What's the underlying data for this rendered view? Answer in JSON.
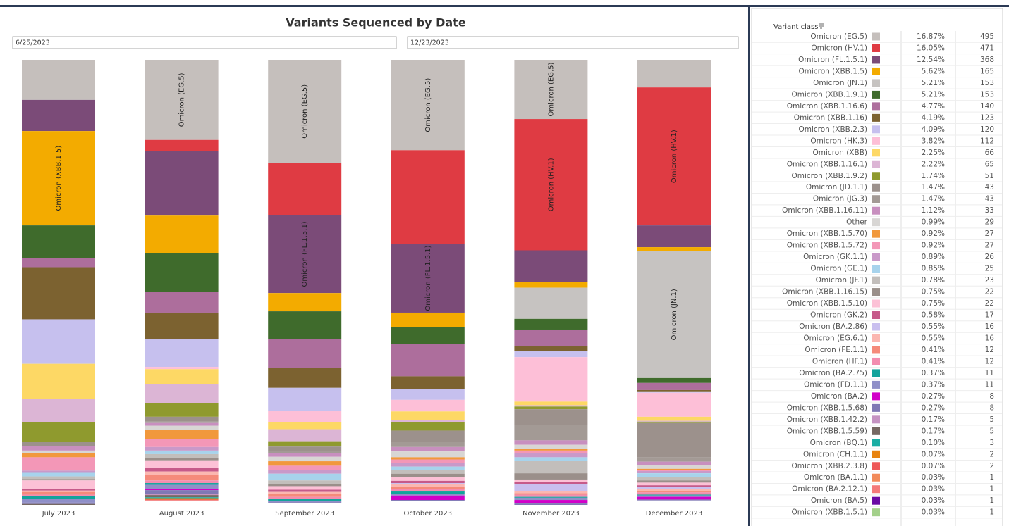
{
  "chart_data": {
    "type": "bar",
    "stacked": true,
    "title": "Variants Sequenced by Date",
    "date_from": "6/25/2023",
    "date_to": "12/23/2023",
    "legend_title": "Variant class",
    "categories": [
      "July 2023",
      "August 2023",
      "September 2023",
      "October 2023",
      "November 2023",
      "December 2023"
    ],
    "ylim": [
      0,
      100
    ],
    "series": [
      {
        "name": "Omicron (EG.5)",
        "color": "#c5bfbc",
        "share": "16.87%",
        "count": 495,
        "values": [
          9.0,
          18.0,
          23.2,
          20.3,
          13.3,
          6.2
        ]
      },
      {
        "name": "Omicron (HV.1)",
        "color": "#df3b43",
        "share": "16.05%",
        "count": 471,
        "values": [
          0,
          2.5,
          11.7,
          21.0,
          29.5,
          31.0
        ]
      },
      {
        "name": "Omicron (FL.1.5.1)",
        "color": "#7b4b78",
        "share": "12.54%",
        "count": 368,
        "values": [
          7.0,
          14.5,
          17.5,
          15.5,
          7.1,
          4.9
        ]
      },
      {
        "name": "Omicron (XBB.1.5)",
        "color": "#f3ab00",
        "share": "5.62%",
        "count": 165,
        "values": [
          21.2,
          8.5,
          4.1,
          3.3,
          1.3,
          0.9
        ]
      },
      {
        "name": "Omicron (JN.1)",
        "color": "#c6c3c1",
        "share": "5.21%",
        "count": 153,
        "values": [
          0,
          0,
          0,
          0,
          7.0,
          28.5
        ]
      },
      {
        "name": "Omicron (XBB.1.9.1)",
        "color": "#3f6b2c",
        "share": "5.21%",
        "count": 153,
        "values": [
          7.3,
          8.7,
          6.2,
          3.8,
          2.4,
          1.1
        ]
      },
      {
        "name": "Omicron (XBB.1.16.6)",
        "color": "#ad6e9c",
        "share": "4.77%",
        "count": 140,
        "values": [
          2.1,
          4.6,
          6.6,
          7.2,
          3.8,
          1.6
        ]
      },
      {
        "name": "Omicron (XBB.1.16)",
        "color": "#7c6230",
        "share": "4.19%",
        "count": 123,
        "values": [
          11.7,
          6.0,
          4.4,
          2.8,
          1.1,
          0.3
        ]
      },
      {
        "name": "Omicron (XBB.2.3)",
        "color": "#c6c0ee",
        "share": "4.09%",
        "count": 120,
        "values": [
          10.0,
          6.2,
          5.2,
          2.5,
          1.3,
          0.3
        ]
      },
      {
        "name": "Omicron (HK.3)",
        "color": "#fdbfd7",
        "share": "3.82%",
        "count": 112,
        "values": [
          0,
          0.5,
          2.5,
          2.6,
          10.0,
          5.4
        ]
      },
      {
        "name": "Omicron (XBB)",
        "color": "#fdd865",
        "share": "2.25%",
        "count": 66,
        "values": [
          7.9,
          3.3,
          1.6,
          1.9,
          0.8,
          0.9
        ]
      },
      {
        "name": "Omicron (XBB.1.16.1)",
        "color": "#dcb5d5",
        "share": "2.22%",
        "count": 65,
        "values": [
          5.2,
          4.4,
          2.7,
          0.5,
          0.3,
          0.2
        ]
      },
      {
        "name": "Omicron (XBB.1.9.2)",
        "color": "#8f9a2e",
        "share": "1.74%",
        "count": 51,
        "values": [
          4.4,
          3.0,
          1.2,
          1.9,
          0.6,
          0.3
        ]
      },
      {
        "name": "Omicron (JD.1.1)",
        "color": "#9c918c",
        "share": "1.47%",
        "count": 43,
        "values": [
          1.0,
          1.1,
          1.0,
          2.5,
          3.5,
          7.7
        ]
      },
      {
        "name": "Omicron (JG.3)",
        "color": "#a39a95",
        "share": "1.47%",
        "count": 43,
        "values": [
          0,
          0.3,
          0.5,
          1.2,
          3.5,
          1.0
        ]
      },
      {
        "name": "Omicron (XBB.1.16.11)",
        "color": "#c88fbf",
        "share": "1.12%",
        "count": 33,
        "values": [
          1.0,
          0.6,
          0.8,
          1.0,
          1.0,
          0.8
        ]
      },
      {
        "name": "Other",
        "color": "#d8d6d4",
        "share": "0.99%",
        "count": 29,
        "values": [
          0.5,
          1.0,
          1.0,
          1.3,
          1.0,
          0.8
        ]
      },
      {
        "name": "Omicron (XBB.1.5.70)",
        "color": "#f1983c",
        "share": "0.92%",
        "count": 27,
        "values": [
          1.0,
          2.0,
          1.0,
          0.5,
          0.3,
          0.2
        ]
      },
      {
        "name": "Omicron (XBB.1.5.72)",
        "color": "#f397b7",
        "share": "0.92%",
        "count": 27,
        "values": [
          3.0,
          1.8,
          1.0,
          0.8,
          0.5,
          0.3
        ]
      },
      {
        "name": "Omicron (GK.1.1)",
        "color": "#c999c9",
        "share": "0.89%",
        "count": 26,
        "values": [
          0.5,
          0.8,
          0.8,
          0.8,
          1.0,
          0.5
        ]
      },
      {
        "name": "Omicron (GE.1)",
        "color": "#a7d3ec",
        "share": "0.85%",
        "count": 25,
        "values": [
          0.8,
          0.8,
          1.5,
          0.8,
          0.8,
          0.8
        ]
      },
      {
        "name": "Omicron (JF.1)",
        "color": "#c2bebb",
        "share": "0.78%",
        "count": 23,
        "values": [
          0.6,
          0.8,
          0.8,
          0.8,
          2.8,
          0.8
        ]
      },
      {
        "name": "Omicron (XBB.1.16.15)",
        "color": "#9a8f8a",
        "share": "0.75%",
        "count": 22,
        "values": [
          0.3,
          0.6,
          0.5,
          0.8,
          1.4,
          0.5
        ]
      },
      {
        "name": "Omicron (XBB.1.5.10)",
        "color": "#fcc1d6",
        "share": "0.75%",
        "count": 22,
        "values": [
          2.0,
          1.7,
          0.8,
          0.8,
          0.5,
          0.6
        ]
      },
      {
        "name": "Omicron (GK.2)",
        "color": "#c65a8a",
        "share": "0.58%",
        "count": 17,
        "values": [
          0.3,
          0.8,
          0.5,
          0.5,
          0.6,
          0.3
        ]
      },
      {
        "name": "Omicron (BA.2.86)",
        "color": "#c9bfef",
        "share": "0.55%",
        "count": 16,
        "values": [
          0,
          0,
          0,
          0.3,
          1.5,
          0.6
        ]
      },
      {
        "name": "Omicron (EG.6.1)",
        "color": "#fbb7b1",
        "share": "0.55%",
        "count": 16,
        "values": [
          0.3,
          0.8,
          0.5,
          0.5,
          0.5,
          0.5
        ]
      },
      {
        "name": "Omicron (FE.1.1)",
        "color": "#f58a7a",
        "share": "0.41%",
        "count": 12,
        "values": [
          0.6,
          1.2,
          0.6,
          0.6,
          0.3,
          0.2
        ]
      },
      {
        "name": "Omicron (HF.1)",
        "color": "#f38db0",
        "share": "0.41%",
        "count": 12,
        "values": [
          0.3,
          0.6,
          0.5,
          0.5,
          0.5,
          0.5
        ]
      },
      {
        "name": "Omicron (BA.2.75)",
        "color": "#13a39b",
        "share": "0.37%",
        "count": 11,
        "values": [
          0.7,
          0.4,
          0.4,
          0.6,
          0.2,
          0.2
        ]
      },
      {
        "name": "Omicron (FD.1.1)",
        "color": "#8f8fc8",
        "share": "0.37%",
        "count": 11,
        "values": [
          0.8,
          1.0,
          0.3,
          0.3,
          0.5,
          0.3
        ]
      },
      {
        "name": "Omicron (BA.2)",
        "color": "#d100c8",
        "share": "0.27%",
        "count": 8,
        "values": [
          0,
          0.2,
          0,
          1.0,
          0.8,
          0.6
        ]
      },
      {
        "name": "Omicron (XBB.1.5.68)",
        "color": "#7f78b4",
        "share": "0.27%",
        "count": 8,
        "values": [
          0.3,
          0.8,
          0.2,
          0.3,
          0.3,
          0.2
        ]
      },
      {
        "name": "Omicron (XBB.1.42.2)",
        "color": "#c593c2",
        "share": "0.17%",
        "count": 5,
        "values": [
          0,
          0.3,
          0,
          0,
          0,
          0
        ]
      },
      {
        "name": "Omicron (XBB.1.5.59)",
        "color": "#766862",
        "share": "0.17%",
        "count": 5,
        "values": [
          0.2,
          0.5,
          0,
          0,
          0,
          0
        ]
      },
      {
        "name": "Omicron (BQ.1)",
        "color": "#1aaea4",
        "share": "0.10%",
        "count": 3,
        "values": [
          0,
          0.2,
          0,
          0,
          0,
          0
        ]
      },
      {
        "name": "Omicron (CH.1.1)",
        "color": "#e8830f",
        "share": "0.07%",
        "count": 2,
        "values": [
          0,
          0.3,
          0,
          0,
          0,
          0
        ]
      },
      {
        "name": "Omicron (XBB.2.3.8)",
        "color": "#ee5858",
        "share": "0.07%",
        "count": 2,
        "values": [
          0,
          0.2,
          0,
          0,
          0,
          0
        ]
      },
      {
        "name": "Omicron (BA.1.1)",
        "color": "#f28a5a",
        "share": "0.03%",
        "count": 1,
        "values": [
          0,
          0,
          0,
          0,
          0,
          0
        ]
      },
      {
        "name": "Omicron (BA.2.12.1)",
        "color": "#f47a7a",
        "share": "0.03%",
        "count": 1,
        "values": [
          0,
          0,
          0,
          0,
          0,
          0
        ]
      },
      {
        "name": "Omicron (BA.5)",
        "color": "#6a0aa4",
        "share": "0.03%",
        "count": 1,
        "values": [
          0,
          0,
          0,
          0,
          0,
          0
        ]
      },
      {
        "name": "Omicron (XBB.1.5.1)",
        "color": "#a3d08a",
        "share": "0.03%",
        "count": 1,
        "values": [
          0,
          0,
          0,
          0,
          0,
          0
        ]
      }
    ],
    "bar_labels": [
      {
        "category": 0,
        "series": 3
      },
      {
        "category": 1,
        "series": 0
      },
      {
        "category": 2,
        "series": 0
      },
      {
        "category": 2,
        "series": 2
      },
      {
        "category": 3,
        "series": 0
      },
      {
        "category": 3,
        "series": 2
      },
      {
        "category": 4,
        "series": 0
      },
      {
        "category": 4,
        "series": 1
      },
      {
        "category": 5,
        "series": 1
      },
      {
        "category": 5,
        "series": 4
      }
    ]
  }
}
